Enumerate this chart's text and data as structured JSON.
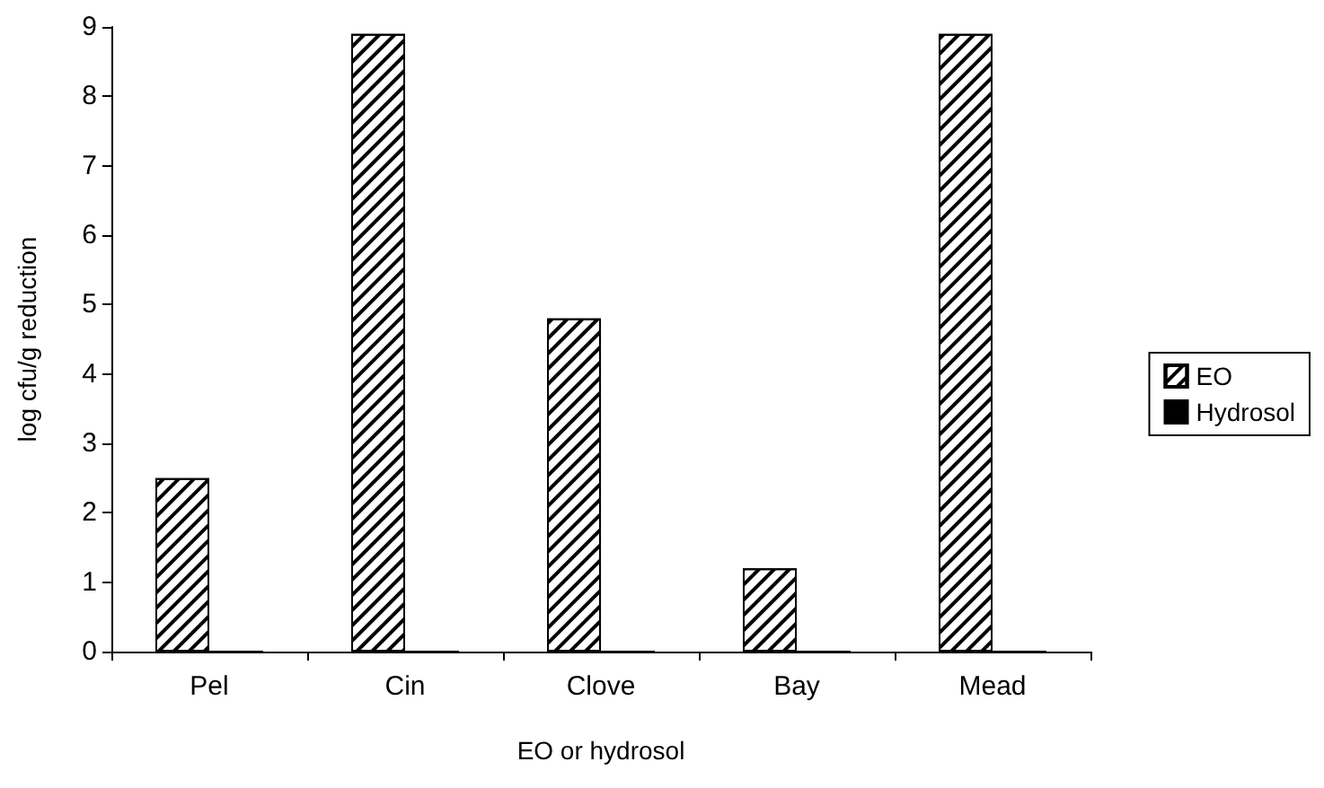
{
  "chart_data": {
    "type": "bar",
    "xlabel": "EO or hydrosol",
    "ylabel": "log cfu/g reduction",
    "categories": [
      "Pel",
      "Cin",
      "Clove",
      "Bay",
      "Mead"
    ],
    "series": [
      {
        "name": "EO",
        "color": "#ffffff",
        "values": [
          2.5,
          8.9,
          4.8,
          1.2,
          8.9
        ]
      },
      {
        "name": "Hydrosol",
        "color": "#000000",
        "values": [
          0,
          0,
          0,
          0,
          0
        ]
      }
    ],
    "ylim": [
      0,
      9
    ],
    "yticks": [
      0,
      1,
      2,
      3,
      4,
      5,
      6,
      7,
      8,
      9
    ],
    "grid": false,
    "legend": "right"
  }
}
